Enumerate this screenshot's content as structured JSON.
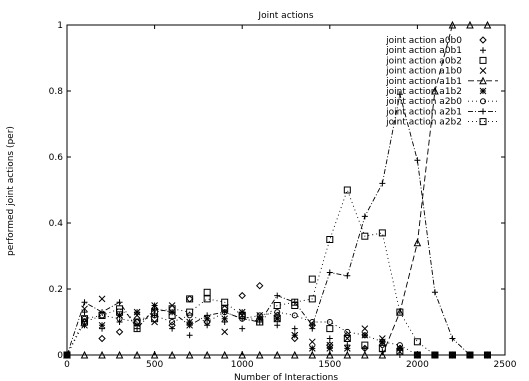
{
  "chart_data": {
    "type": "line",
    "title": "Joint actions",
    "xlabel": "Number of Interactions",
    "ylabel": "performed joint actions (per)",
    "xlim": [
      0,
      2500
    ],
    "ylim": [
      0,
      1
    ],
    "xticks": [
      "0",
      "500",
      "1000",
      "1500",
      "2000",
      "2500"
    ],
    "yticks": [
      "0",
      "0.2",
      "0.4",
      "0.6",
      "0.8",
      "1"
    ],
    "grid": false,
    "legend_position": "top-right",
    "x": [
      0,
      100,
      200,
      300,
      400,
      500,
      600,
      700,
      800,
      900,
      1000,
      1100,
      1200,
      1300,
      1400,
      1500,
      1600,
      1700,
      1800,
      1900,
      2000,
      2100,
      2200,
      2300,
      2400
    ],
    "series": [
      {
        "name": "joint action a0b0",
        "marker": "diamond",
        "line": "none",
        "values": [
          0,
          0.1,
          0.05,
          0.07,
          0.1,
          0.14,
          0.09,
          0.17,
          0.1,
          0.14,
          0.18,
          0.21,
          0.12,
          0.05,
          0.09,
          0.03,
          0.06,
          0.02,
          0.03,
          0.02,
          0.0,
          0.0,
          0.0,
          0.0,
          0.0
        ]
      },
      {
        "name": "joint action a0b1",
        "marker": "plus",
        "line": "none",
        "values": [
          0,
          0.13,
          0.08,
          0.1,
          0.09,
          0.12,
          0.08,
          0.06,
          0.09,
          0.1,
          0.08,
          0.11,
          0.09,
          0.08,
          0.08,
          0.05,
          0.03,
          0.02,
          0.01,
          0.0,
          0.0,
          0.0,
          0.0,
          0.0,
          0.0
        ]
      },
      {
        "name": "joint action a0b2",
        "marker": "square",
        "line": "none",
        "values": [
          0,
          0.11,
          0.12,
          0.13,
          0.08,
          0.11,
          0.12,
          0.17,
          0.19,
          0.14,
          0.12,
          0.1,
          0.11,
          0.15,
          0.23,
          0.08,
          0.05,
          0.03,
          0.02,
          0.01,
          0.0,
          0.0,
          0.0,
          0.0,
          0.0
        ]
      },
      {
        "name": "joint action a1b0",
        "marker": "cross",
        "line": "none",
        "values": [
          0,
          0.14,
          0.17,
          0.12,
          0.12,
          0.1,
          0.15,
          0.09,
          0.11,
          0.07,
          0.12,
          0.12,
          0.11,
          0.06,
          0.04,
          0.03,
          0.05,
          0.08,
          0.05,
          0.01,
          0.0,
          0.0,
          0.0,
          0.0,
          0.0
        ]
      },
      {
        "name": "joint action a1b1",
        "marker": "triangle",
        "line": "dashed",
        "values": [
          0,
          0.0,
          0.0,
          0.0,
          0.0,
          0.0,
          0.0,
          0.0,
          0.0,
          0.0,
          0.0,
          0.0,
          0.0,
          0.0,
          0.0,
          0.0,
          0.0,
          0.0,
          0.0,
          0.13,
          0.34,
          0.8,
          1.0,
          1.0,
          1.0
        ]
      },
      {
        "name": "joint action a1b2",
        "marker": "asterisk",
        "line": "none",
        "values": [
          0,
          0.09,
          0.09,
          0.12,
          0.13,
          0.15,
          0.13,
          0.1,
          0.11,
          0.11,
          0.13,
          0.11,
          0.11,
          0.06,
          0.02,
          0.02,
          0.02,
          0.06,
          0.04,
          0.02,
          0.0,
          0.0,
          0.0,
          0.0,
          0.0
        ]
      },
      {
        "name": "joint action a2b0",
        "marker": "circle",
        "line": "dotted",
        "values": [
          0,
          0.11,
          0.12,
          0.11,
          0.1,
          0.12,
          0.1,
          0.12,
          0.1,
          0.13,
          0.11,
          0.12,
          0.13,
          0.12,
          0.1,
          0.1,
          0.07,
          0.06,
          0.04,
          0.03,
          0.0,
          0.0,
          0.0,
          0.0,
          0.0
        ]
      },
      {
        "name": "joint action a2b1",
        "marker": "plus",
        "line": "dashdot",
        "values": [
          0,
          0.16,
          0.13,
          0.16,
          0.08,
          0.14,
          0.13,
          0.09,
          0.12,
          0.13,
          0.11,
          0.1,
          0.18,
          0.16,
          0.09,
          0.25,
          0.24,
          0.42,
          0.52,
          0.79,
          0.59,
          0.19,
          0.05,
          0.0,
          0.0
        ]
      },
      {
        "name": "joint action a2b2",
        "marker": "square",
        "line": "dotted",
        "values": [
          0,
          0.1,
          0.12,
          0.14,
          0.1,
          0.13,
          0.14,
          0.13,
          0.17,
          0.16,
          0.12,
          0.1,
          0.15,
          0.16,
          0.17,
          0.35,
          0.5,
          0.36,
          0.37,
          0.13,
          0.04,
          0.0,
          0.0,
          0.0,
          0.0
        ]
      }
    ]
  }
}
